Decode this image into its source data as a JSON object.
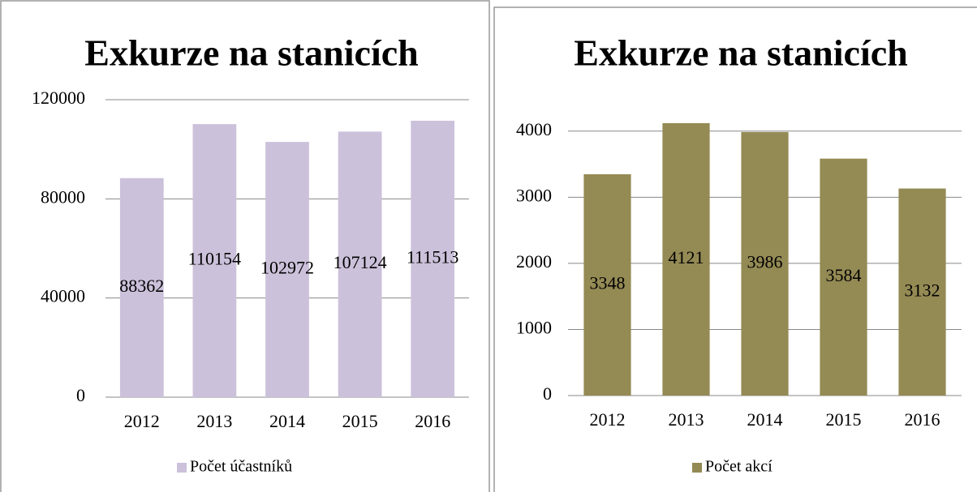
{
  "chart_data": [
    {
      "type": "bar",
      "title": "Exkurze na stanicích",
      "categories": [
        "2012",
        "2013",
        "2014",
        "2015",
        "2016"
      ],
      "series": [
        {
          "name": "Počet účastníků",
          "color": "#ccc1da",
          "values": [
            88362,
            110154,
            102972,
            107124,
            111513
          ]
        }
      ],
      "ylim": [
        0,
        120000
      ],
      "yticks": [
        0,
        40000,
        80000,
        120000
      ],
      "grid": true,
      "legend": "bottom"
    },
    {
      "type": "bar",
      "title": "Exkurze na stanicích",
      "categories": [
        "2012",
        "2013",
        "2014",
        "2015",
        "2016"
      ],
      "series": [
        {
          "name": "Počet akcí",
          "color": "#948a54",
          "values": [
            3348,
            4121,
            3986,
            3584,
            3132
          ]
        }
      ],
      "ylim": [
        0,
        4500
      ],
      "yticks": [
        0,
        1000,
        2000,
        3000,
        4000
      ],
      "grid": true,
      "legend": "bottom"
    }
  ]
}
